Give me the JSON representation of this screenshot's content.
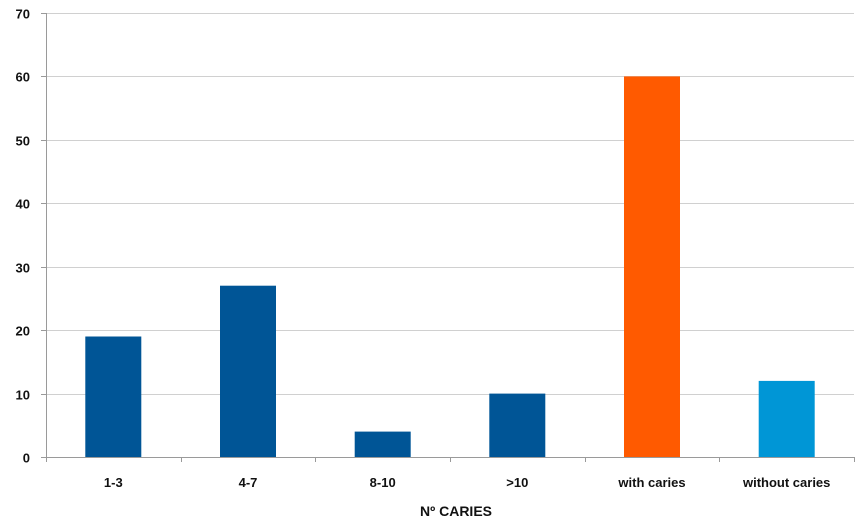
{
  "chart_data": {
    "type": "bar",
    "title": "",
    "xlabel": "Nº CARIES",
    "ylabel": "",
    "categories": [
      "1-3",
      "4-7",
      "8-10",
      ">10",
      "with caries",
      "without caries"
    ],
    "values": [
      19,
      27,
      4,
      10,
      60,
      12
    ],
    "bar_colors": [
      "#005596",
      "#005596",
      "#005596",
      "#005596",
      "#ff5a00",
      "#0096d6"
    ],
    "ylim": [
      0,
      70
    ],
    "yticks": [
      0,
      10,
      20,
      30,
      40,
      50,
      60,
      70
    ],
    "grid": true,
    "legend": "none"
  }
}
